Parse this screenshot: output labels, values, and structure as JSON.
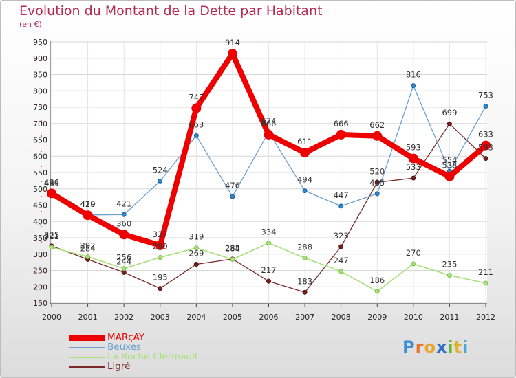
{
  "header": {
    "title": "Evolution du Montant de la Dette par Habitant",
    "unit": "(en €)"
  },
  "colors": {
    "title": "#b52a55",
    "marcay": "#ee0000",
    "beuxes": "#6a9fcf",
    "roche": "#a8e07a",
    "ligre": "#7a2a2a"
  },
  "chart_data": {
    "type": "line",
    "x": [
      "2000",
      "2001",
      "2002",
      "2003",
      "2004",
      "2005",
      "2006",
      "2007",
      "2008",
      "2009",
      "2010",
      "2011",
      "2012"
    ],
    "ylim": [
      150,
      950
    ],
    "yticks": [
      150,
      200,
      250,
      300,
      350,
      400,
      450,
      500,
      550,
      600,
      650,
      700,
      750,
      800,
      850,
      900,
      950
    ],
    "grid": true,
    "legend": "bottom-left",
    "series": [
      {
        "name": "MARçAY",
        "values": [
          486,
          419,
          360,
          327,
          747,
          914,
          666,
          611,
          666,
          662,
          593,
          538,
          633
        ]
      },
      {
        "name": "Beuxes",
        "values": [
          483,
          420,
          421,
          524,
          663,
          476,
          674,
          494,
          447,
          485,
          816,
          554,
          753
        ]
      },
      {
        "name": "La Roche-Clermault",
        "values": [
          321,
          292,
          256,
          290,
          319,
          284,
          334,
          288,
          247,
          186,
          270,
          235,
          211
        ]
      },
      {
        "name": "Ligré",
        "values": [
          325,
          284,
          244,
          195,
          269,
          285,
          217,
          183,
          323,
          520,
          533,
          699,
          593
        ]
      }
    ]
  },
  "logo": {
    "letters": [
      "P",
      "r",
      "o",
      "x",
      "i",
      "t",
      "i"
    ],
    "colors": [
      "#3a8fd8",
      "#e8732a",
      "#e8a531",
      "#2f6fc4",
      "#63b53a",
      "#e0b12a",
      "#4aa6d8"
    ]
  }
}
